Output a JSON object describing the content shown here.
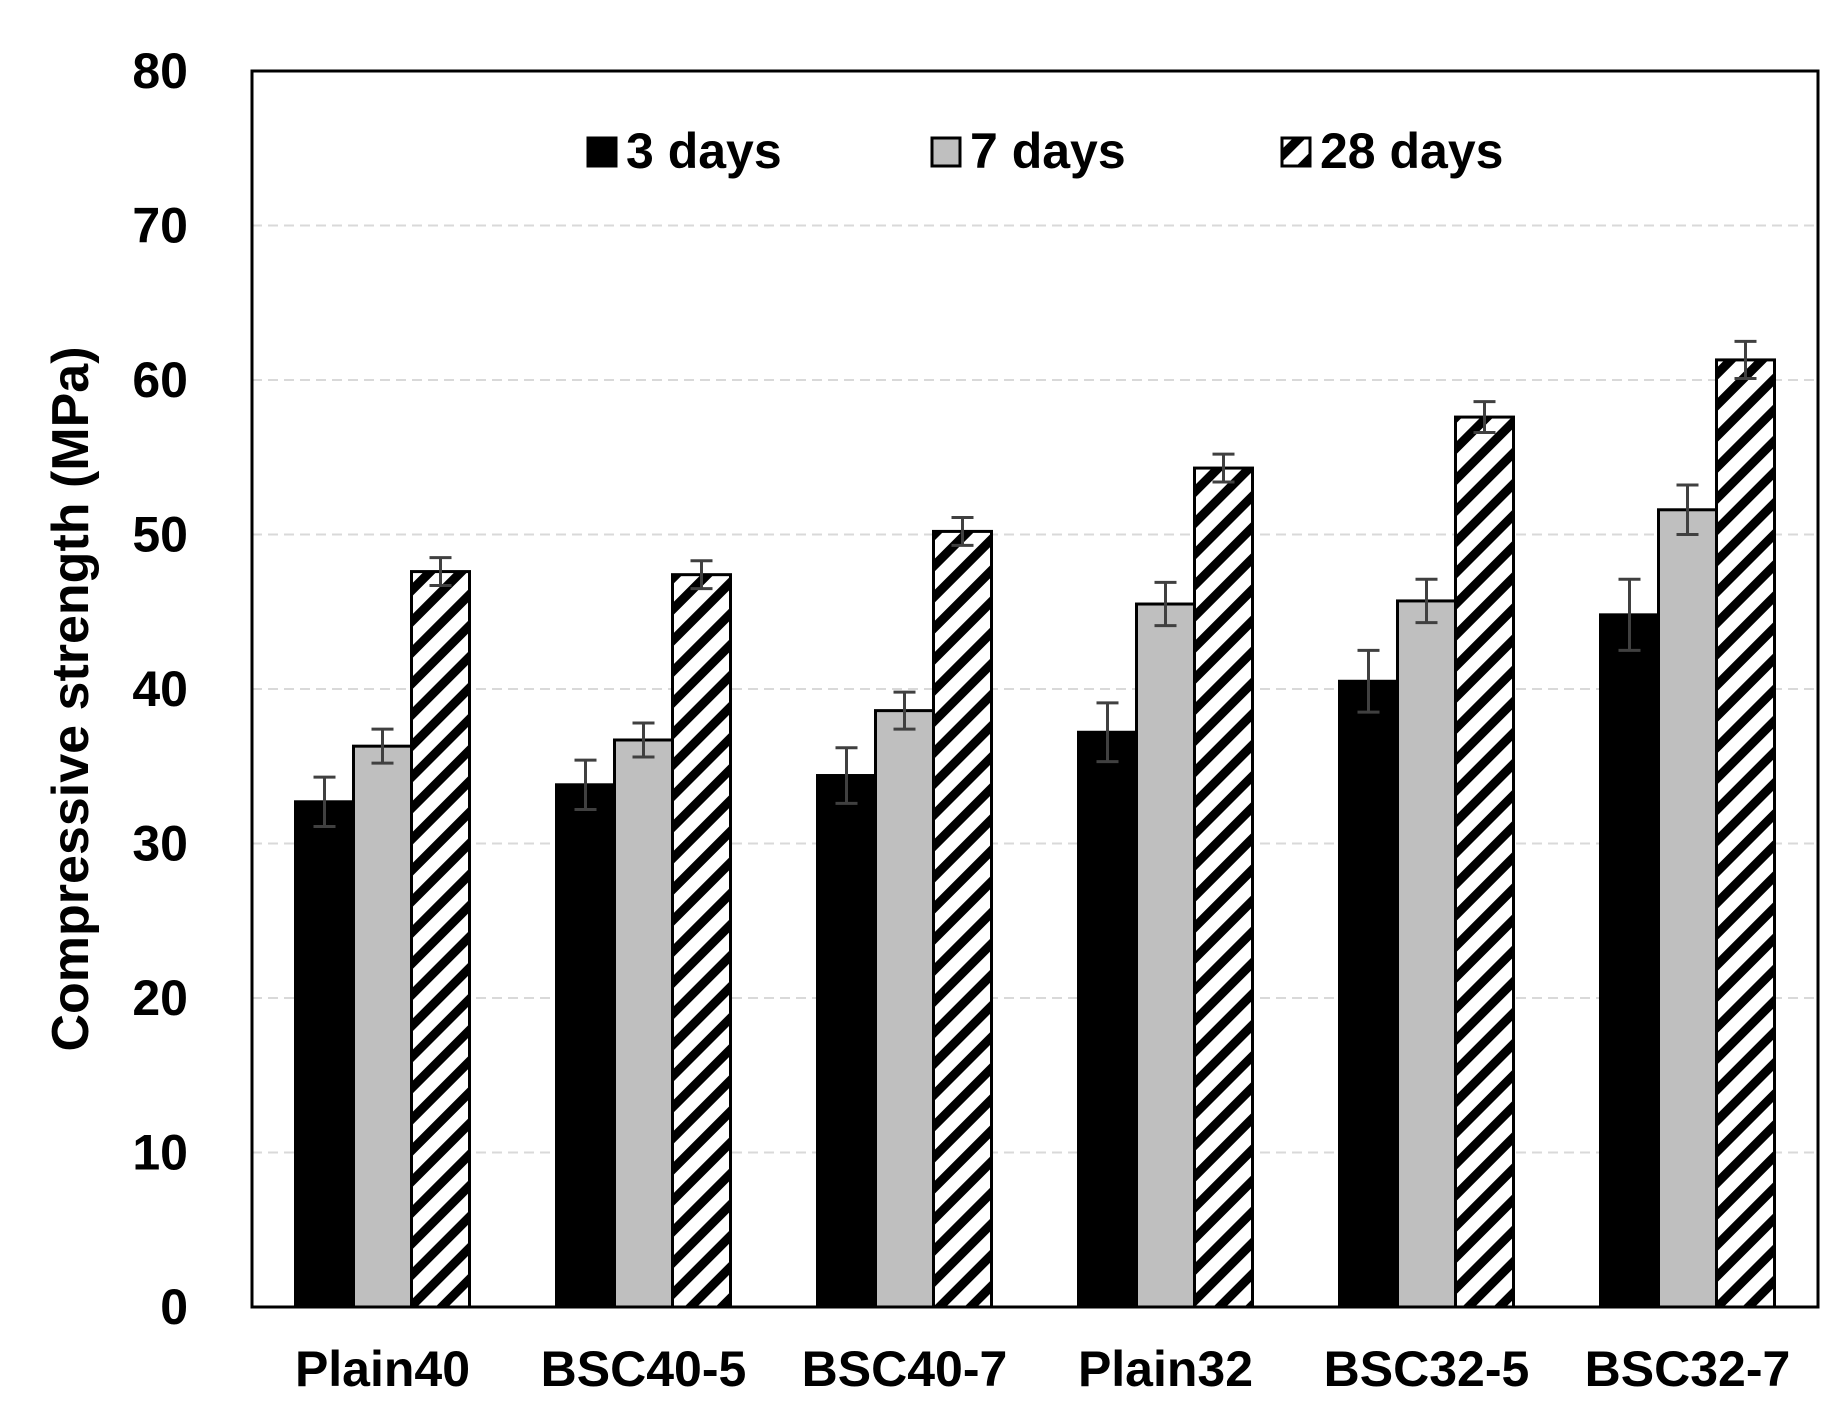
{
  "chart_data": {
    "type": "bar",
    "title": "",
    "xlabel": "",
    "ylabel": "Compressive strength (MPa)",
    "ylim": [
      0,
      80
    ],
    "yticks": [
      "0",
      "10",
      "20",
      "30",
      "40",
      "50",
      "60",
      "70",
      "80"
    ],
    "grid": true,
    "legend_position": "top-center",
    "categories": [
      "Plain40",
      "BSC40-5",
      "BSC40-7",
      "Plain32",
      "BSC32-5",
      "BSC32-7"
    ],
    "series": [
      {
        "name": "3 days",
        "fill": "#000000",
        "pattern": "solid",
        "values": [
          32.7,
          33.8,
          34.4,
          37.2,
          40.5,
          44.8
        ],
        "errors": [
          1.6,
          1.6,
          1.8,
          1.9,
          2.0,
          2.3
        ]
      },
      {
        "name": "7 days",
        "fill": "#bfbfbf",
        "pattern": "solid",
        "values": [
          36.3,
          36.7,
          38.6,
          45.5,
          45.7,
          51.6
        ],
        "errors": [
          1.1,
          1.1,
          1.2,
          1.4,
          1.4,
          1.6
        ]
      },
      {
        "name": "28 days",
        "fill": "#ffffff",
        "pattern": "diagonal-hatch",
        "values": [
          47.6,
          47.4,
          50.2,
          54.3,
          57.6,
          61.3
        ],
        "errors": [
          0.9,
          0.9,
          0.9,
          0.9,
          1.0,
          1.2
        ]
      }
    ],
    "colors": {
      "axis": "#000000",
      "grid": "#d9d9d9",
      "error_bar": "#404040"
    }
  }
}
